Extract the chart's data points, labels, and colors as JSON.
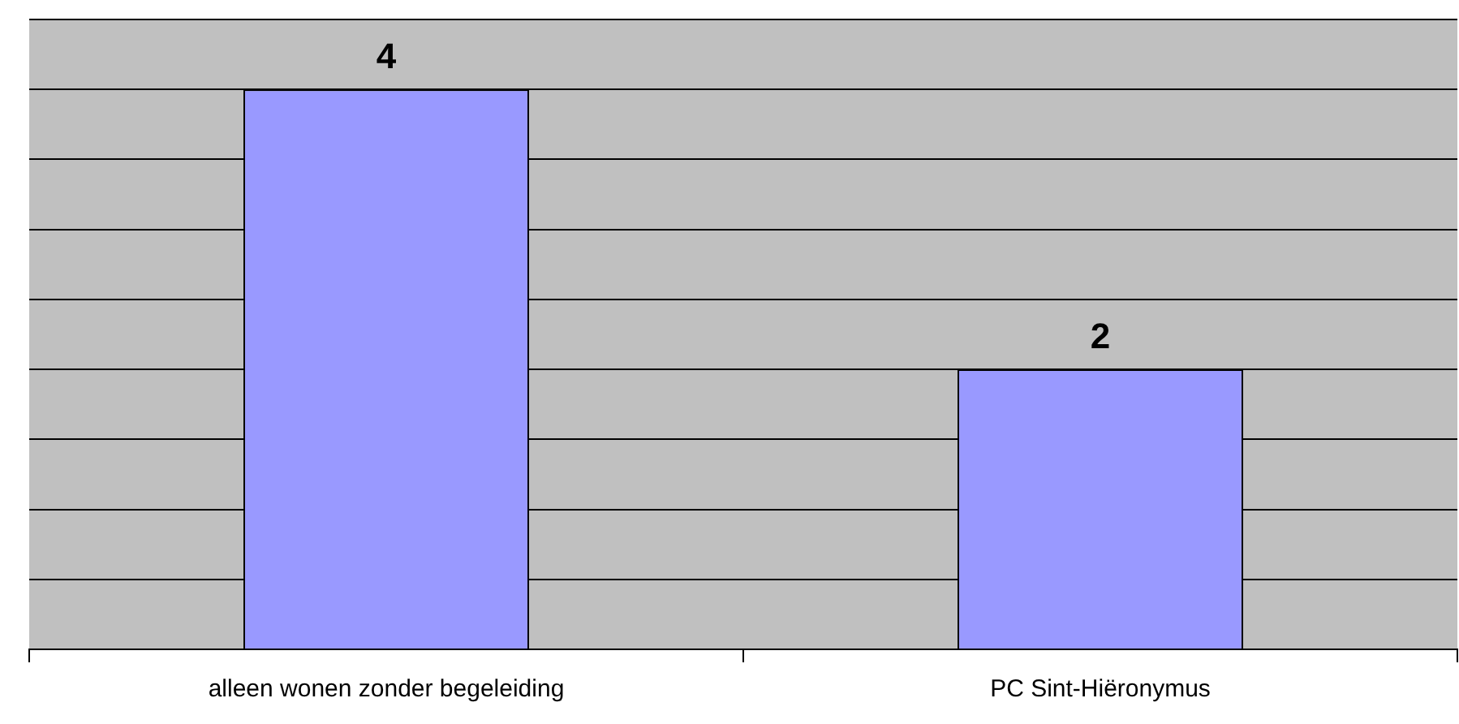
{
  "chart_data": {
    "type": "bar",
    "categories": [
      "alleen wonen zonder begeleiding",
      "PC Sint-Hiëronymus"
    ],
    "values": [
      4,
      2
    ],
    "color": "#9999ff",
    "ylim": [
      0,
      4.5
    ],
    "yticks": [
      {
        "value": 0,
        "label": null
      },
      {
        "value": 0.5,
        "label": null
      },
      {
        "value": 1,
        "label": null
      },
      {
        "value": 1.5,
        "label": null
      },
      {
        "value": 2,
        "label": null
      },
      {
        "value": 2.5,
        "label": null
      },
      {
        "value": 3,
        "label": null
      },
      {
        "value": 3.5,
        "label": null
      },
      {
        "value": 4,
        "label": null
      },
      {
        "value": 4.5,
        "label": null
      }
    ],
    "grid": "y",
    "tick_labels": "x",
    "data_labels": true,
    "legend": false
  }
}
